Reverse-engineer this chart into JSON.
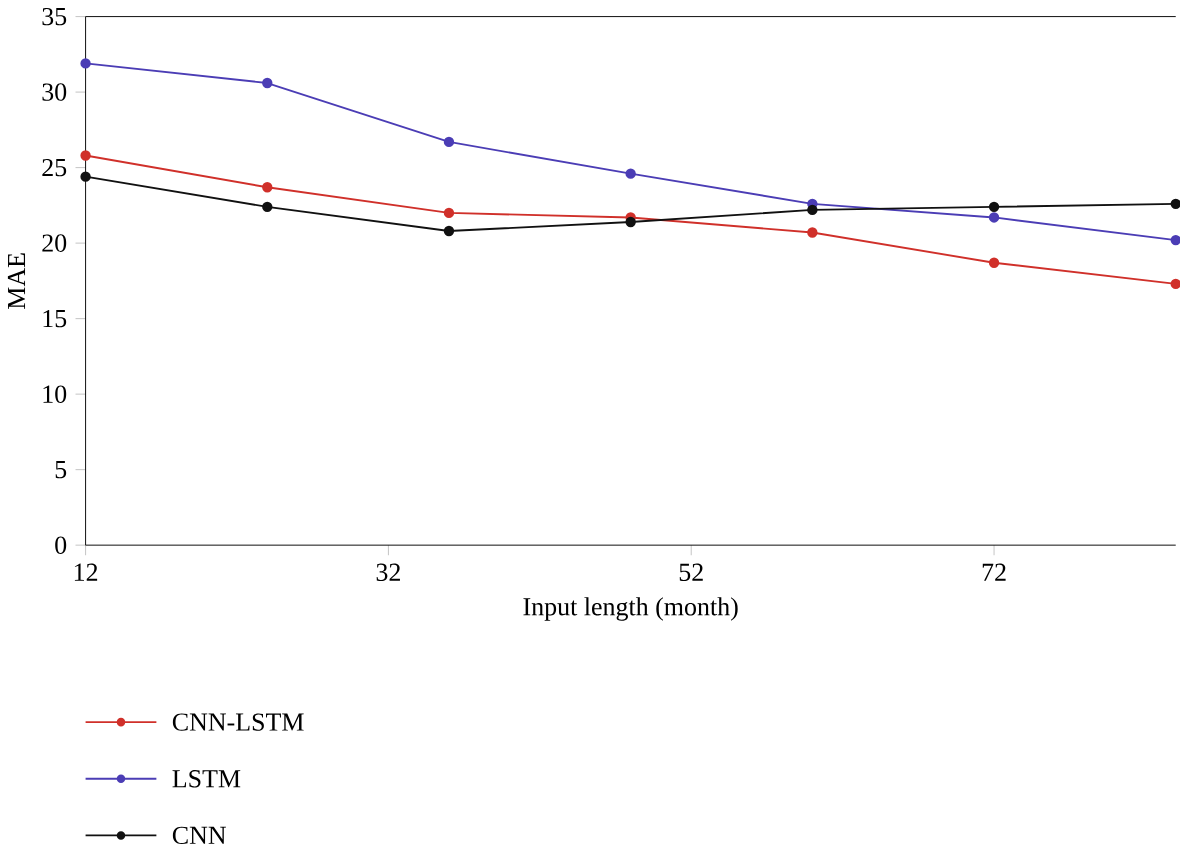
{
  "chart_data": {
    "type": "line",
    "xlabel": "Input length (month)",
    "ylabel": "MAE",
    "x": [
      12,
      24,
      36,
      48,
      60,
      72,
      84
    ],
    "xlim": [
      12,
      84
    ],
    "xticks": [
      12,
      32,
      52,
      72
    ],
    "ylim": [
      0,
      35
    ],
    "yticks": [
      0,
      5,
      10,
      15,
      20,
      25,
      30,
      35
    ],
    "series": [
      {
        "name": "CNN-LSTM",
        "color": "#d0302a",
        "values": [
          25.8,
          23.7,
          22.0,
          21.7,
          20.7,
          18.7,
          17.3
        ]
      },
      {
        "name": "LSTM",
        "color": "#4b3db5",
        "values": [
          31.9,
          30.6,
          26.7,
          24.6,
          22.6,
          21.7,
          20.2
        ]
      },
      {
        "name": "CNN",
        "color": "#111111",
        "values": [
          24.4,
          22.4,
          20.8,
          21.4,
          22.2,
          22.4,
          22.6
        ]
      }
    ],
    "marker": "circle",
    "legend": "bottom left",
    "grid": false
  }
}
